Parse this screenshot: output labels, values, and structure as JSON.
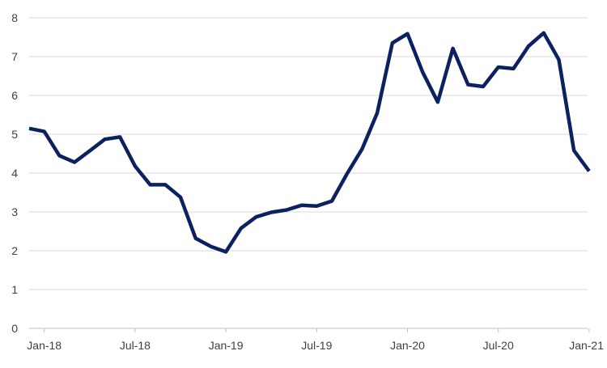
{
  "chart_data": {
    "type": "line",
    "title": "",
    "xlabel": "",
    "ylabel": "",
    "ylim": [
      0,
      8
    ],
    "yticks": [
      0,
      1,
      2,
      3,
      4,
      5,
      6,
      7,
      8
    ],
    "grid": true,
    "legend": "none",
    "line_color": "#0b2160",
    "grid_color": "#d9d9d9",
    "axis_color": "#bfbfbf",
    "x_tick_labels": [
      {
        "label": "Jan-18",
        "month_index": 0
      },
      {
        "label": "Jul-18",
        "month_index": 6
      },
      {
        "label": "Jan-19",
        "month_index": 12
      },
      {
        "label": "Jul-19",
        "month_index": 18
      },
      {
        "label": "Jan-20",
        "month_index": 24
      },
      {
        "label": "Jul-20",
        "month_index": 30
      },
      {
        "label": "Jan-21",
        "month_index": 36
      }
    ],
    "series": [
      {
        "x": [
          "Dec-17",
          "Jan-18",
          "Feb-18",
          "Mar-18",
          "Apr-18",
          "May-18",
          "Jun-18",
          "Jul-18",
          "Aug-18",
          "Sep-18",
          "Oct-18",
          "Nov-18",
          "Dec-18",
          "Jan-19",
          "Feb-19",
          "Mar-19",
          "Apr-19",
          "May-19",
          "Jun-19",
          "Jul-19",
          "Aug-19",
          "Sep-19",
          "Oct-19",
          "Nov-19",
          "Dec-19",
          "Jan-20",
          "Feb-20",
          "Mar-20",
          "Apr-20",
          "May-20",
          "Jun-20",
          "Jul-20",
          "Aug-20",
          "Sep-20",
          "Oct-20",
          "Nov-20",
          "Dec-20",
          "Jan-21"
        ],
        "values": [
          5.15,
          5.07,
          4.45,
          4.28,
          4.57,
          4.87,
          4.93,
          4.18,
          3.7,
          3.7,
          3.38,
          2.32,
          2.11,
          1.97,
          2.58,
          2.87,
          2.99,
          3.05,
          3.17,
          3.15,
          3.28,
          3.98,
          4.62,
          5.55,
          7.35,
          7.59,
          6.6,
          5.83,
          7.21,
          6.28,
          6.23,
          6.73,
          6.69,
          7.27,
          7.61,
          6.92,
          4.58,
          4.05
        ]
      }
    ]
  }
}
